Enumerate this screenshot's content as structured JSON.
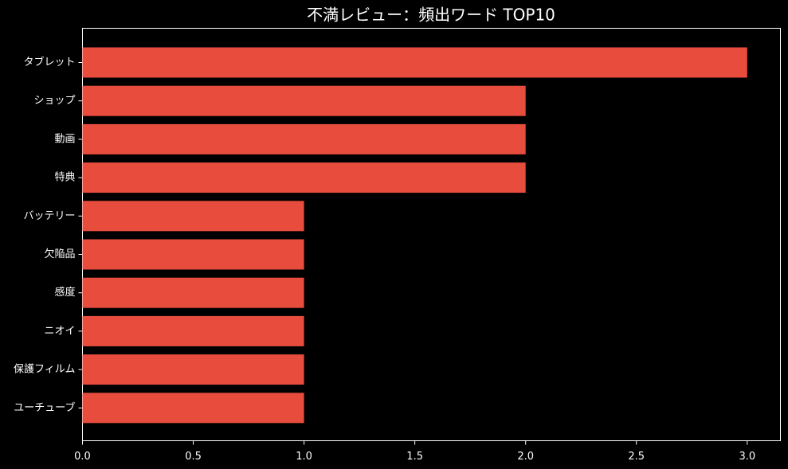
{
  "chart_data": {
    "type": "barh",
    "title": "不満レビュー：頻出ワード TOP10",
    "categories": [
      "タブレット",
      "ショップ",
      "動画",
      "特典",
      "バッテリー",
      "欠陥品",
      "感度",
      "ニオイ",
      "保護フィルム",
      "ユーチューブ"
    ],
    "values": [
      3,
      2,
      2,
      2,
      1,
      1,
      1,
      1,
      1,
      1
    ],
    "color": "#e74c3c",
    "xlim": [
      0,
      3.15
    ],
    "xticks": [
      {
        "value": 0,
        "label": "0.0"
      },
      0.5,
      {
        "value": 1,
        "label": "1.0"
      },
      1.5,
      {
        "value": 2,
        "label": "2.0"
      },
      2.5,
      {
        "value": 3,
        "label": "3.0"
      }
    ]
  }
}
